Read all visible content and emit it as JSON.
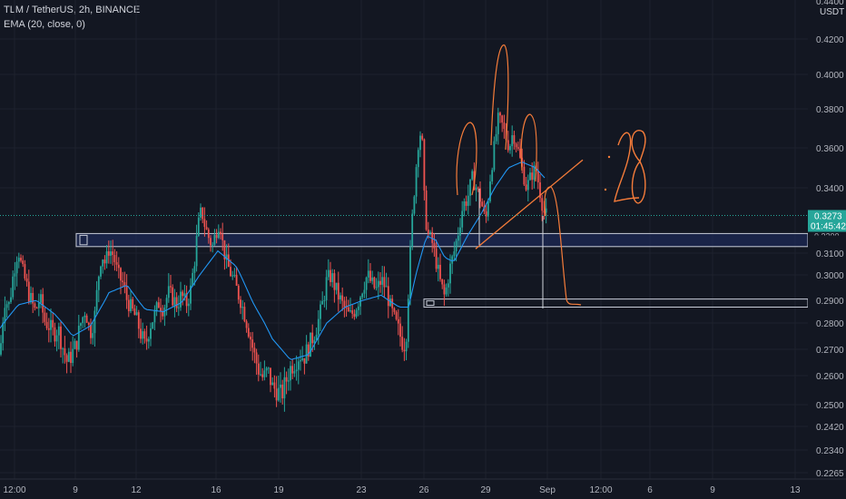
{
  "header": {
    "symbol_line": "TLM / TetherUS, 2h, BINANCE",
    "indicator_line": "EMA (20, close, 0)"
  },
  "price_scale": {
    "currency": "USDT",
    "top_partial_label": "0.4400",
    "labels": [
      "0.4200",
      "0.4000",
      "0.3800",
      "0.3600",
      "0.3400",
      "0.3100",
      "0.3000",
      "0.2900",
      "0.2800",
      "0.2700",
      "0.2600",
      "0.2500",
      "0.2420",
      "0.2340",
      "0.2265"
    ]
  },
  "time_scale": {
    "labels": [
      "12:00",
      "9",
      "12",
      "16",
      "19",
      "23",
      "26",
      "29",
      "Sep",
      "12:00",
      "6",
      "9",
      "13"
    ]
  },
  "last_price": {
    "value": "0.3273",
    "countdown": "01:45:42",
    "hidden_label": "0.3200"
  },
  "annotations": {
    "handwritten_text": ":28"
  },
  "colors": {
    "background": "#131722",
    "up": "#26a69a",
    "down": "#ef5350",
    "ema": "#2196f3",
    "drawing": "#f57c3a",
    "zone_border": "#c8ccd8",
    "zone_fill": "#1e2a55"
  },
  "chart_data": {
    "type": "candlestick",
    "title": "TLM / TetherUS, 2h, BINANCE",
    "indicator": "EMA (20, close, 0)",
    "ylim": [
      0.2265,
      0.44
    ],
    "last_price": 0.3273,
    "x_ticks": [
      "12:00",
      "9",
      "12",
      "16",
      "19",
      "23",
      "26",
      "29",
      "Sep",
      "12:00",
      "6",
      "9",
      "13"
    ],
    "close_path": [
      [
        0,
        0.268
      ],
      [
        5,
        0.29
      ],
      [
        10,
        0.288
      ],
      [
        15,
        0.301
      ],
      [
        20,
        0.312
      ],
      [
        24,
        0.303
      ],
      [
        29,
        0.296
      ],
      [
        34,
        0.29
      ],
      [
        39,
        0.285
      ],
      [
        44,
        0.291
      ],
      [
        49,
        0.281
      ],
      [
        54,
        0.279
      ],
      [
        59,
        0.276
      ],
      [
        64,
        0.278
      ],
      [
        69,
        0.271
      ],
      [
        74,
        0.265
      ],
      [
        79,
        0.268
      ],
      [
        84,
        0.272
      ],
      [
        89,
        0.28
      ],
      [
        94,
        0.286
      ],
      [
        99,
        0.276
      ],
      [
        104,
        0.282
      ],
      [
        108,
        0.298
      ],
      [
        112,
        0.31
      ],
      [
        116,
        0.305
      ],
      [
        120,
        0.312
      ],
      [
        125,
        0.309
      ],
      [
        130,
        0.3
      ],
      [
        135,
        0.297
      ],
      [
        140,
        0.29
      ],
      [
        145,
        0.286
      ],
      [
        150,
        0.282
      ],
      [
        155,
        0.276
      ],
      [
        160,
        0.271
      ],
      [
        165,
        0.279
      ],
      [
        170,
        0.283
      ],
      [
        175,
        0.289
      ],
      [
        180,
        0.286
      ],
      [
        185,
        0.293
      ],
      [
        190,
        0.291
      ],
      [
        195,
        0.288
      ],
      [
        200,
        0.292
      ],
      [
        205,
        0.288
      ],
      [
        210,
        0.294
      ],
      [
        214,
        0.305
      ],
      [
        218,
        0.322
      ],
      [
        222,
        0.33
      ],
      [
        226,
        0.322
      ],
      [
        230,
        0.317
      ],
      [
        234,
        0.313
      ],
      [
        238,
        0.32
      ],
      [
        242,
        0.325
      ],
      [
        246,
        0.312
      ],
      [
        250,
        0.305
      ],
      [
        255,
        0.3
      ],
      [
        260,
        0.295
      ],
      [
        265,
        0.29
      ],
      [
        270,
        0.283
      ],
      [
        275,
        0.276
      ],
      [
        280,
        0.268
      ],
      [
        285,
        0.262
      ],
      [
        290,
        0.259
      ],
      [
        295,
        0.262
      ],
      [
        300,
        0.256
      ],
      [
        305,
        0.255
      ],
      [
        310,
        0.253
      ],
      [
        315,
        0.258
      ],
      [
        320,
        0.263
      ],
      [
        325,
        0.265
      ],
      [
        330,
        0.268
      ],
      [
        335,
        0.267
      ],
      [
        340,
        0.271
      ],
      [
        345,
        0.275
      ],
      [
        350,
        0.28
      ],
      [
        355,
        0.288
      ],
      [
        360,
        0.298
      ],
      [
        365,
        0.3
      ],
      [
        370,
        0.294
      ],
      [
        375,
        0.29
      ],
      [
        380,
        0.286
      ],
      [
        385,
        0.283
      ],
      [
        390,
        0.285
      ],
      [
        395,
        0.29
      ],
      [
        400,
        0.296
      ],
      [
        405,
        0.3
      ],
      [
        410,
        0.296
      ],
      [
        415,
        0.294
      ],
      [
        420,
        0.298
      ],
      [
        425,
        0.295
      ],
      [
        430,
        0.287
      ],
      [
        435,
        0.281
      ],
      [
        440,
        0.276
      ],
      [
        444,
        0.272
      ],
      [
        447,
        0.272
      ],
      [
        450,
        0.295
      ],
      [
        454,
        0.325
      ],
      [
        458,
        0.348
      ],
      [
        462,
        0.369
      ],
      [
        465,
        0.364
      ],
      [
        468,
        0.328
      ],
      [
        472,
        0.318
      ],
      [
        476,
        0.315
      ],
      [
        480,
        0.307
      ],
      [
        485,
        0.297
      ],
      [
        490,
        0.291
      ],
      [
        495,
        0.302
      ],
      [
        500,
        0.31
      ],
      [
        505,
        0.32
      ],
      [
        510,
        0.332
      ],
      [
        515,
        0.335
      ],
      [
        520,
        0.345
      ],
      [
        525,
        0.34
      ],
      [
        530,
        0.334
      ],
      [
        535,
        0.324
      ],
      [
        540,
        0.345
      ],
      [
        545,
        0.362
      ],
      [
        549,
        0.375
      ],
      [
        553,
        0.372
      ],
      [
        557,
        0.366
      ],
      [
        561,
        0.36
      ],
      [
        565,
        0.368
      ],
      [
        570,
        0.36
      ],
      [
        575,
        0.35
      ],
      [
        580,
        0.34
      ],
      [
        585,
        0.346
      ],
      [
        590,
        0.35
      ],
      [
        595,
        0.338
      ],
      [
        599,
        0.329
      ],
      [
        602,
        0.327
      ]
    ],
    "ema_path": [
      [
        0,
        0.278
      ],
      [
        20,
        0.288
      ],
      [
        40,
        0.29
      ],
      [
        60,
        0.284
      ],
      [
        80,
        0.275
      ],
      [
        100,
        0.279
      ],
      [
        120,
        0.293
      ],
      [
        140,
        0.296
      ],
      [
        160,
        0.286
      ],
      [
        180,
        0.285
      ],
      [
        200,
        0.289
      ],
      [
        220,
        0.3
      ],
      [
        240,
        0.311
      ],
      [
        260,
        0.304
      ],
      [
        280,
        0.288
      ],
      [
        300,
        0.274
      ],
      [
        320,
        0.266
      ],
      [
        340,
        0.268
      ],
      [
        360,
        0.28
      ],
      [
        380,
        0.287
      ],
      [
        400,
        0.29
      ],
      [
        420,
        0.292
      ],
      [
        440,
        0.287
      ],
      [
        450,
        0.287
      ],
      [
        460,
        0.303
      ],
      [
        470,
        0.318
      ],
      [
        480,
        0.316
      ],
      [
        490,
        0.308
      ],
      [
        500,
        0.306
      ],
      [
        515,
        0.318
      ],
      [
        530,
        0.328
      ],
      [
        545,
        0.34
      ],
      [
        560,
        0.35
      ],
      [
        575,
        0.353
      ],
      [
        590,
        0.35
      ],
      [
        602,
        0.344
      ]
    ],
    "resistance_zone": {
      "from_price": 0.313,
      "to_price": 0.319
    },
    "support_zone": {
      "from_price": 0.287,
      "to_price": 0.2905
    },
    "trendline_prices": [
      0.312,
      0.354
    ]
  }
}
